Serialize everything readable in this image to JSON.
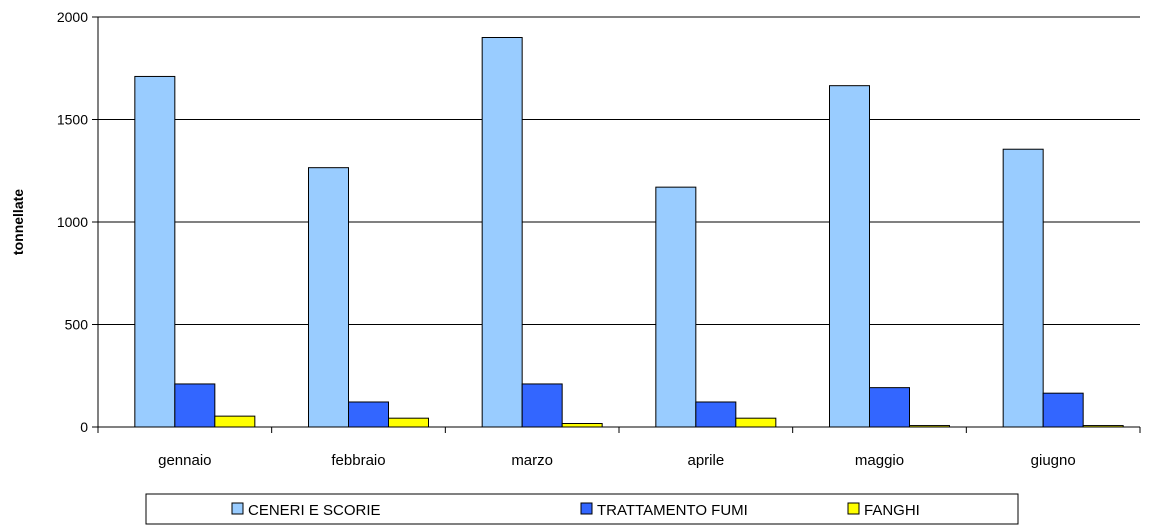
{
  "chart_data": {
    "type": "bar",
    "title": "",
    "xlabel": "",
    "ylabel": "tonnellate",
    "ylim": [
      0,
      2000
    ],
    "yticks": [
      0,
      500,
      1000,
      1500,
      2000
    ],
    "grid": true,
    "legend_position": "bottom",
    "categories": [
      "gennaio",
      "febbraio",
      "marzo",
      "aprile",
      "maggio",
      "giugno"
    ],
    "series": [
      {
        "name": "CENERI E SCORIE",
        "color": "#99ccff",
        "values": [
          1710,
          1265,
          1900,
          1170,
          1665,
          1355
        ]
      },
      {
        "name": "TRATTAMENTO FUMI",
        "color": "#3366ff",
        "values": [
          210,
          122,
          210,
          122,
          192,
          165
        ]
      },
      {
        "name": "FANGHI",
        "color": "#ffff00",
        "values": [
          53,
          43,
          17,
          43,
          7,
          7
        ]
      }
    ]
  }
}
